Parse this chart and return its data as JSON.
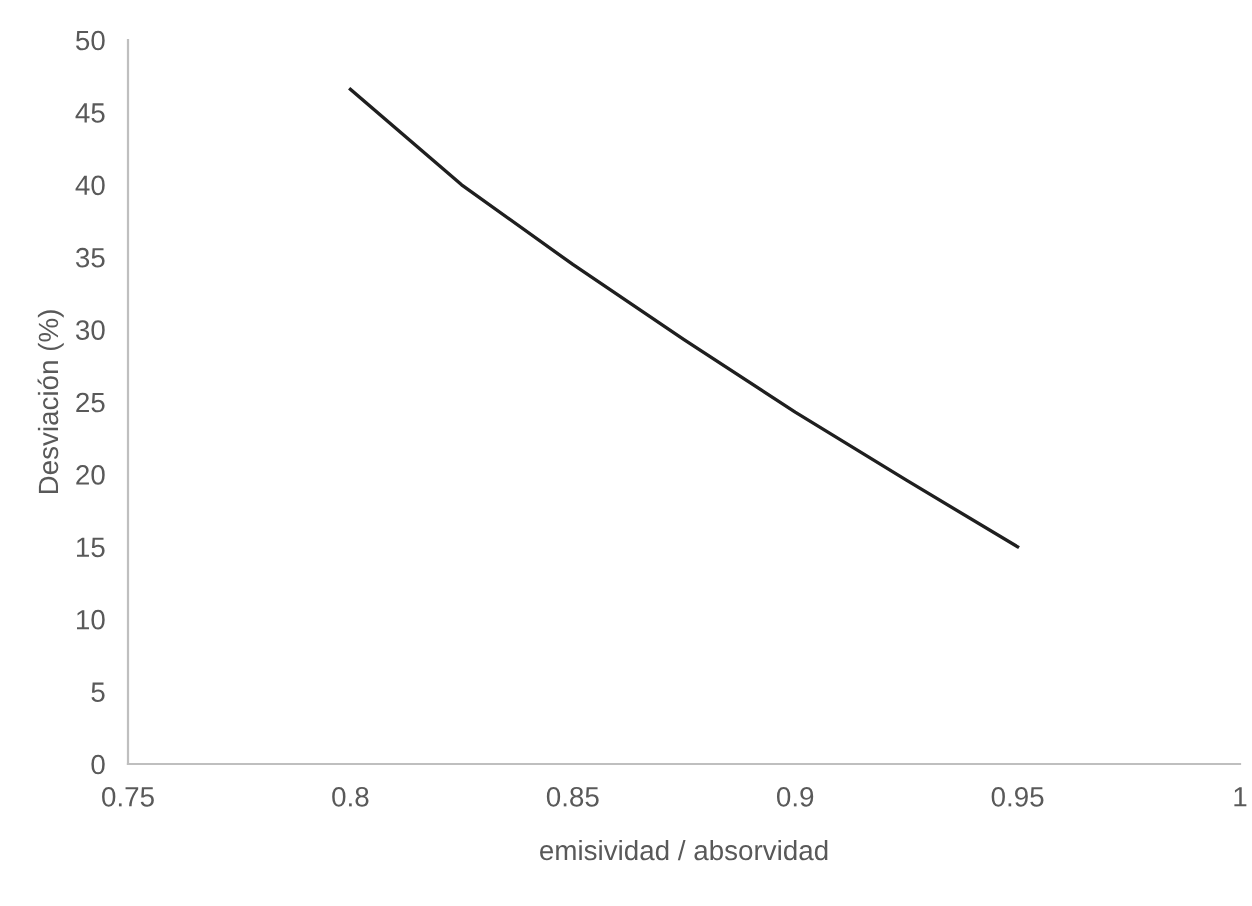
{
  "chart_data": {
    "type": "line",
    "xlabel": "emisividad / absorvidad",
    "ylabel": "Desviación (%)",
    "x": [
      0.8,
      0.825,
      0.85,
      0.875,
      0.9,
      0.925,
      0.95
    ],
    "series": [
      {
        "color": "#1f1f1f",
        "values": [
          46.6,
          40.0,
          34.5,
          29.3,
          24.3,
          19.6,
          15.0
        ]
      }
    ],
    "xlim": [
      0.75,
      1
    ],
    "xticks": [
      0.75,
      0.8,
      0.85,
      0.9,
      0.95,
      1
    ],
    "ylim": [
      0,
      50
    ],
    "yticks": [
      0,
      5,
      10,
      15,
      20,
      25,
      30,
      35,
      40,
      45,
      50
    ],
    "grid": false,
    "legend": false,
    "marker": "none",
    "line_style": "solid"
  }
}
